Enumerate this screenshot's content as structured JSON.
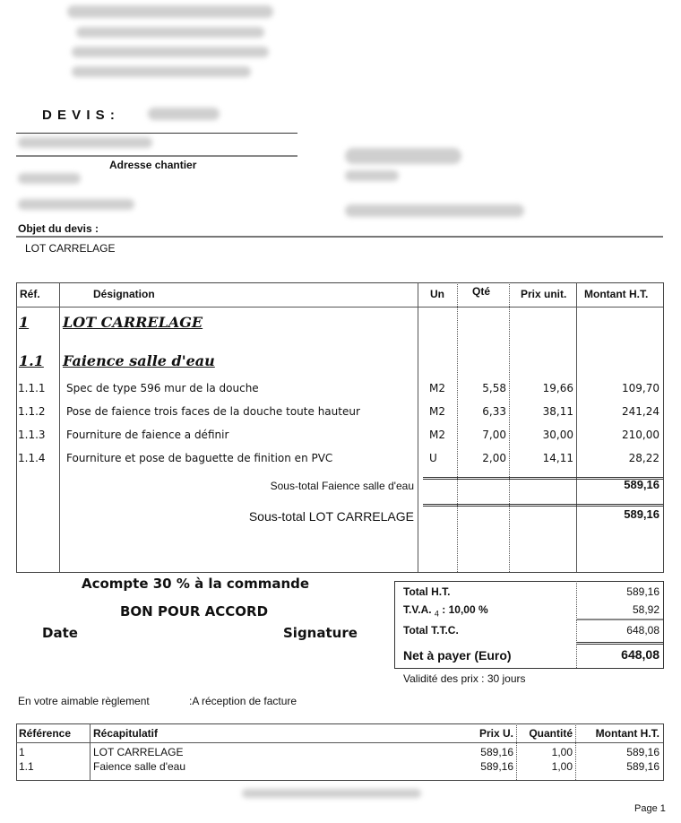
{
  "header": {
    "title": "D E V I S :",
    "site_address_label": "Adresse chantier",
    "object_label": "Objet du devis   :",
    "object_value": "LOT CARRELAGE"
  },
  "table": {
    "columns": [
      "Réf.",
      "Désignation",
      "Un",
      "Qté",
      "Prix unit.",
      "Montant H.T."
    ],
    "lot": {
      "ref": "1",
      "label": "LOT CARRELAGE"
    },
    "section": {
      "ref": "1.1",
      "label": "Faience salle d'eau"
    },
    "rows": [
      {
        "ref": "1.1.1",
        "designation": "Spec de type 596 mur de la douche",
        "unit": "M2",
        "qty": "5,58",
        "price": "19,66",
        "amount": "109,70"
      },
      {
        "ref": "1.1.2",
        "designation": "Pose de faience trois faces de la douche toute hauteur",
        "unit": "M2",
        "qty": "6,33",
        "price": "38,11",
        "amount": "241,24"
      },
      {
        "ref": "1.1.3",
        "designation": "Fourniture de faience a définir",
        "unit": "M2",
        "qty": "7,00",
        "price": "30,00",
        "amount": "210,00"
      },
      {
        "ref": "1.1.4",
        "designation": "Fourniture et pose de baguette de finition en PVC",
        "unit": "U",
        "qty": "2,00",
        "price": "14,11",
        "amount": "28,22"
      }
    ],
    "subtotal_section": {
      "label": "Sous-total  Faience salle d'eau",
      "amount": "589,16"
    },
    "subtotal_lot": {
      "label": "Sous-total  LOT CARRELAGE",
      "amount": "589,16"
    }
  },
  "approval": {
    "deposit": "Acompte 30 % à la commande",
    "accord": "BON POUR ACCORD",
    "date": "Date",
    "signature": "Signature"
  },
  "totals": {
    "ht_label": "Total H.T.",
    "ht": "589,16",
    "tva_label": "T.V.A.",
    "tva_index": "4",
    "tva_rate": ": 10,00 %",
    "tva": "58,92",
    "ttc_label": "Total T.T.C.",
    "ttc": "648,08",
    "net_label": "Net à payer (Euro)",
    "net": "648,08",
    "validity": "Validité des prix : 30 jours"
  },
  "payment": {
    "label": "En votre aimable règlement",
    "value": ":A réception de facture"
  },
  "recap": {
    "columns": [
      "Référence",
      "Récapitulatif",
      "Prix U.",
      "Quantité",
      "Montant H.T."
    ],
    "rows": [
      {
        "ref": "1",
        "label": "LOT CARRELAGE",
        "price": "589,16",
        "qty": "1,00",
        "amount": "589,16"
      },
      {
        "ref": "1.1",
        "label": "Faience salle d'eau",
        "price": "589,16",
        "qty": "1,00",
        "amount": "589,16"
      }
    ]
  },
  "footer": {
    "page": "Page 1"
  }
}
